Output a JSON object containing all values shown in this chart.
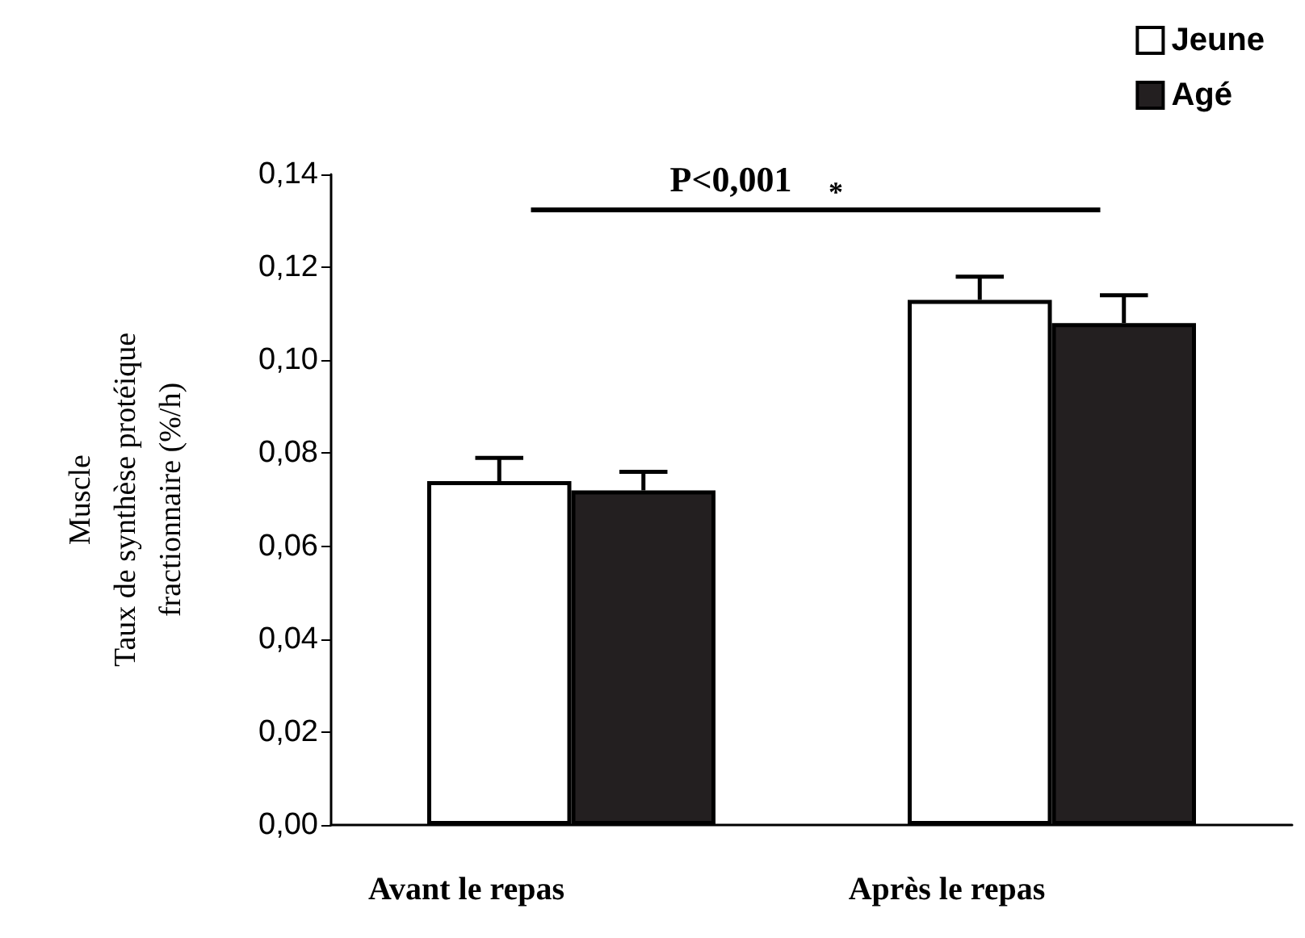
{
  "chart_data": {
    "type": "bar",
    "ylabel": "Muscle\nTaux de synthèse protéique\nfractionnaire (%/h)",
    "categories": [
      "Avant le repas",
      "Après le repas"
    ],
    "series": [
      {
        "name": "Jeune",
        "color": "#ffffff",
        "values": [
          0.074,
          0.113
        ],
        "errors": [
          0.005,
          0.005
        ]
      },
      {
        "name": "Agé",
        "color": "#231f20",
        "values": [
          0.072,
          0.108
        ],
        "errors": [
          0.004,
          0.006
        ]
      }
    ],
    "ylim": [
      0,
      0.14
    ],
    "yticks": [
      {
        "value": 0,
        "label": "0,00"
      },
      {
        "value": 0.02,
        "label": "0,02"
      },
      {
        "value": 0.04,
        "label": "0,04"
      },
      {
        "value": 0.06,
        "label": "0,06"
      },
      {
        "value": 0.08,
        "label": "0,08"
      },
      {
        "value": 0.1,
        "label": "0,10"
      },
      {
        "value": 0.12,
        "label": "0,12"
      },
      {
        "value": 0.14,
        "label": "0,14"
      }
    ],
    "annotations": [
      "P<0,001",
      "*"
    ],
    "grid": false,
    "legend": "top right"
  }
}
